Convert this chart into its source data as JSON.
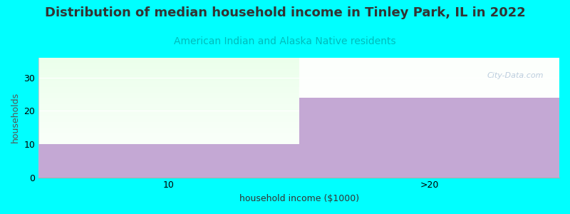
{
  "title": "Distribution of median household income in Tinley Park, IL in 2022",
  "subtitle": "American Indian and Alaska Native residents",
  "xlabel": "household income ($1000)",
  "ylabel": "households",
  "background_color": "#00FFFF",
  "bar_color": "#C4A8D4",
  "categories": [
    "10",
    ">20"
  ],
  "values": [
    10,
    24
  ],
  "ylim": [
    0,
    36
  ],
  "yticks": [
    0,
    10,
    20,
    30
  ],
  "title_fontsize": 13,
  "subtitle_fontsize": 10,
  "title_color": "#333333",
  "subtitle_color": "#00BBBB",
  "axis_label_fontsize": 9,
  "watermark": "City-Data.com"
}
